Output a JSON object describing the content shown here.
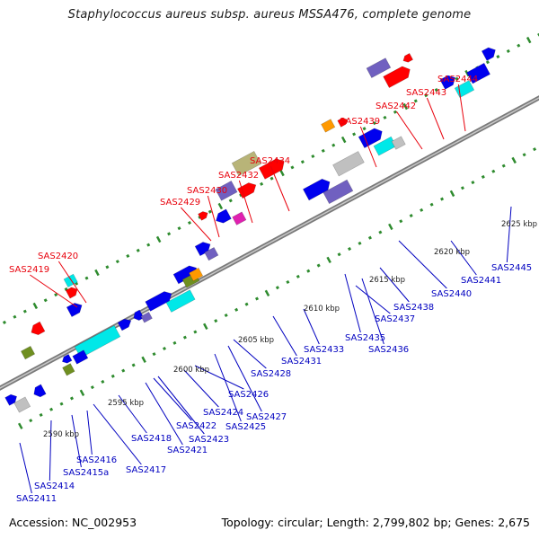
{
  "title": "Staphylococcus aureus subsp. aureus MSSA476, complete genome",
  "footer": {
    "accession": "Accession: NC_002953",
    "summary": "Topology: circular; Length: 2,799,802 bp; Genes: 2,675"
  },
  "colors": {
    "backbone": "#888888",
    "red_labels": "#e8000b",
    "blue_labels": "#0000c0",
    "tick_green": "#2e8b2e",
    "gene_blue": "#0000ee",
    "gene_red": "#ff0000",
    "gene_purple": "#7060c0",
    "gene_cyan": "#00e8e8",
    "gene_olive": "#b8b478",
    "gene_orange": "#ff9900",
    "gene_magenta": "#e020b0",
    "gene_grey": "#c0c0c0",
    "gene_green": "#6f8f20"
  },
  "scale_labels": [
    "2590 kbp",
    "2595 kbp",
    "2600 kbp",
    "2605 kbp",
    "2610 kbp",
    "2615 kbp",
    "2620 kbp",
    "2625 kbp"
  ],
  "red_labels": [
    "SAS2419",
    "SAS2420",
    "SAS2429",
    "SAS2430",
    "SAS2432",
    "SAS2434",
    "SAS2439",
    "SAS2442",
    "SAS2443",
    "SAS2444"
  ],
  "blue_labels": [
    "SAS2411",
    "SAS2414",
    "SAS2415a",
    "SAS2416",
    "SAS2417",
    "SAS2418",
    "SAS2421",
    "SAS2422",
    "SAS2423",
    "SAS2424",
    "SAS2425",
    "SAS2426",
    "SAS2427",
    "SAS2428",
    "SAS2431",
    "SAS2433",
    "SAS2435",
    "SAS2436",
    "SAS2437",
    "SAS2438",
    "SAS2440",
    "SAS2441",
    "SAS2445"
  ]
}
